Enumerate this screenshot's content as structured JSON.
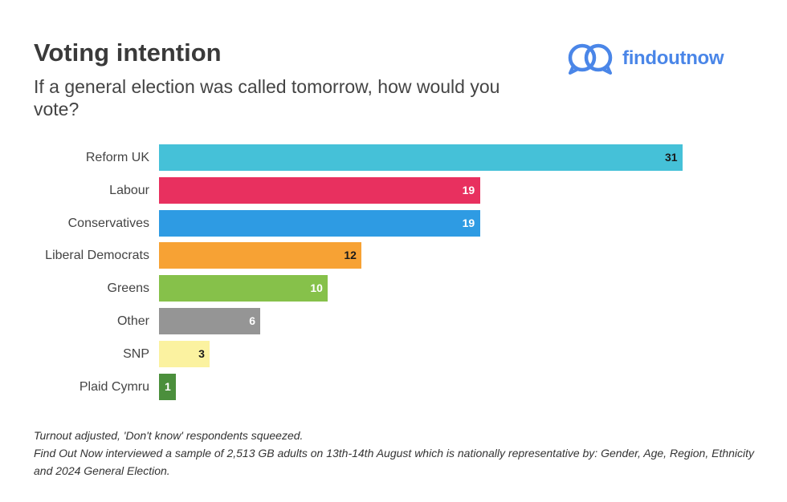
{
  "header": {
    "title": "Voting intention",
    "subtitle": "If a general election was called tomorrow, how would you vote?"
  },
  "logo": {
    "text": "findoutnow",
    "icon": "overlapping-speech-bubbles-icon",
    "color": "#4a86e8"
  },
  "chart_data": {
    "type": "bar",
    "orientation": "horizontal",
    "title": "Voting intention",
    "subtitle": "If a general election was called tomorrow, how would you vote?",
    "xlabel": "",
    "ylabel": "",
    "xlim": [
      0,
      31
    ],
    "categories": [
      "Reform UK",
      "Labour",
      "Conservatives",
      "Liberal Democrats",
      "Greens",
      "Other",
      "SNP",
      "Plaid Cymru"
    ],
    "values": [
      31,
      19,
      19,
      12,
      10,
      6,
      3,
      1
    ],
    "colors": [
      "#45c1d8",
      "#e8305f",
      "#2e9be3",
      "#f7a234",
      "#86c14a",
      "#959595",
      "#fbf2a0",
      "#4b8f3c"
    ],
    "label_colors": [
      "#1a1a1a",
      "#ffffff",
      "#ffffff",
      "#1a1a1a",
      "#ffffff",
      "#ffffff",
      "#1a1a1a",
      "#ffffff"
    ]
  },
  "footnote": {
    "line1": "Turnout adjusted, 'Don't know' respondents squeezed.",
    "line2": "Find Out Now interviewed a sample of 2,513 GB adults on 13th-14th August which is nationally representative by: Gender, Age, Region, Ethnicity and 2024 General Election."
  }
}
